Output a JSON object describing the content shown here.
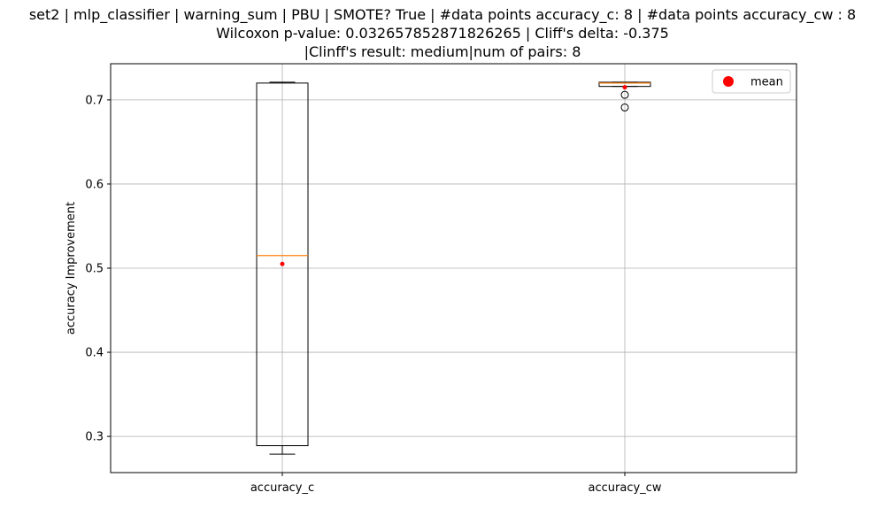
{
  "chart_data": {
    "type": "box",
    "title_lines": [
      "set2 | mlp_classifier | warning_sum | PBU | SMOTE? True | #data points accuracy_c: 8 | #data points accuracy_cw : 8",
      "Wilcoxon p-value: 0.032657852871826265 | Cliff's delta: -0.375",
      "|Clinff's result: medium|num of pairs: 8"
    ],
    "xlabel": "",
    "ylabel": "accuracy Improvement",
    "ylim": [
      0.257,
      0.743
    ],
    "yticks": [
      0.3,
      0.4,
      0.5,
      0.6,
      0.7
    ],
    "ytick_labels": [
      "0.3",
      "0.4",
      "0.5",
      "0.6",
      "0.7"
    ],
    "grid": true,
    "legend": {
      "position": "top-right",
      "entries": [
        "mean"
      ]
    },
    "categories": [
      "accuracy_c",
      "accuracy_cw"
    ],
    "boxes": [
      {
        "category": "accuracy_c",
        "whisker_low": 0.279,
        "q1": 0.289,
        "median": 0.515,
        "q3": 0.72,
        "whisker_high": 0.721,
        "mean": 0.505,
        "outliers": []
      },
      {
        "category": "accuracy_cw",
        "whisker_low": 0.716,
        "q1": 0.716,
        "median": 0.72,
        "q3": 0.721,
        "whisker_high": 0.721,
        "mean": 0.715,
        "outliers": [
          0.706,
          0.691
        ]
      }
    ],
    "colors": {
      "box": "#000000",
      "median": "#ff7f0e",
      "mean": "#ff0000",
      "grid": "#b0b0b0"
    }
  }
}
